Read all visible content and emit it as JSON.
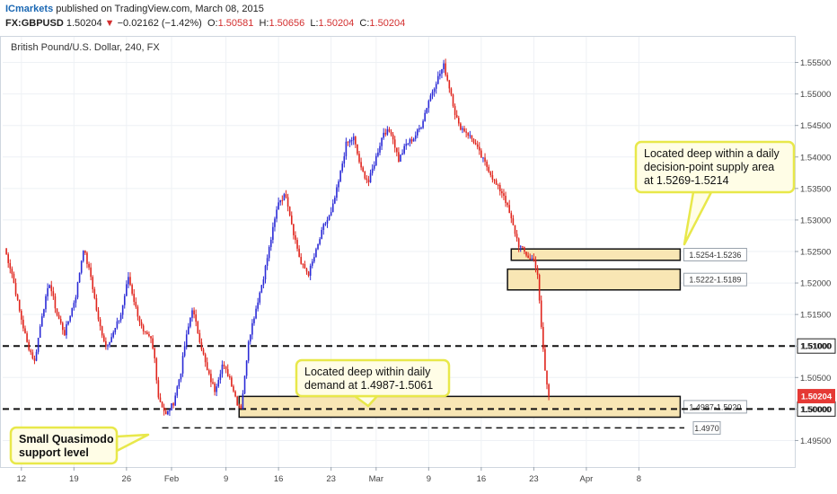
{
  "header": {
    "brand": "ICmarkets",
    "published": "published on TradingView.com, March 08, 2015",
    "symbol": "FX:GBPUSD",
    "last": "1.50204",
    "change_arrow": "▼",
    "change": "−0.02162 (−1.42%)",
    "o_label": "O:",
    "o_value": "1.50581",
    "h_label": "H:",
    "h_value": "1.50656",
    "l_label": "L:",
    "l_value": "1.50204",
    "c_label": "C:",
    "c_value": "1.50204"
  },
  "colors": {
    "up": "#2b2bd6",
    "down": "#e0261e",
    "zone_fill": "#f8e6b4",
    "annotation_fill": "#fffde6",
    "annotation_border": "#e8e84a",
    "price_badge": "#e53935"
  },
  "chart_data": {
    "type": "candlestick",
    "title": "British Pound/U.S. Dollar, 240, FX",
    "ylim": [
      1.4915,
      1.5575
    ],
    "price_labels": [
      "1.55500",
      "1.55000",
      "1.54500",
      "1.54000",
      "1.53500",
      "1.53000",
      "1.52500",
      "1.52000",
      "1.51500",
      "1.51000",
      "1.50500",
      "1.50000",
      "1.49500"
    ],
    "price_values": [
      1.555,
      1.55,
      1.545,
      1.54,
      1.535,
      1.53,
      1.525,
      1.52,
      1.515,
      1.51,
      1.505,
      1.5,
      1.495
    ],
    "x_labels": [
      "12",
      "19",
      "26",
      "Feb",
      "9",
      "16",
      "23",
      "Mar",
      "9",
      "16",
      "23",
      "Apr",
      "8"
    ],
    "x_index": [
      9,
      37,
      65,
      89,
      118,
      146,
      174,
      198,
      226,
      254,
      282,
      310,
      338
    ],
    "current_price": {
      "value": 1.50204,
      "label": "1.50204"
    },
    "horizontal_levels": [
      {
        "value": 1.51,
        "label": "1.51000",
        "style": "dashed",
        "from": 0
      },
      {
        "value": 1.5,
        "label": "1.50000",
        "style": "dashed",
        "from": 0
      },
      {
        "value": 1.497,
        "label": "1.4970",
        "style": "dashed",
        "from": 84
      }
    ],
    "zones": [
      {
        "top": 1.5254,
        "bottom": 1.5236,
        "label": "1.5254-1.5236",
        "from": 270,
        "to": 360
      },
      {
        "top": 1.5222,
        "bottom": 1.5189,
        "label": "1.5222-1.5189",
        "from": 268,
        "to": 360
      },
      {
        "top": 1.502,
        "bottom": 1.4987,
        "label": "1.4987-1.5020",
        "from": 125,
        "to": 360
      }
    ],
    "annotations": [
      {
        "id": "supply",
        "lines": [
          "Located deep within a daily",
          "decision-point supply area",
          "at 1.5269-1.5214"
        ]
      },
      {
        "id": "demand",
        "lines": [
          "Located deep within daily",
          "demand at 1.4987-1.5061"
        ]
      },
      {
        "id": "qm",
        "lines": [
          "Small Quasimodo",
          "support level"
        ]
      }
    ],
    "waypoints": [
      [
        0,
        1.5255
      ],
      [
        4,
        1.5215
      ],
      [
        8,
        1.5155
      ],
      [
        12,
        1.5105
      ],
      [
        16,
        1.5075
      ],
      [
        20,
        1.515
      ],
      [
        24,
        1.52
      ],
      [
        28,
        1.515
      ],
      [
        32,
        1.512
      ],
      [
        38,
        1.518
      ],
      [
        42,
        1.5255
      ],
      [
        46,
        1.521
      ],
      [
        50,
        1.514
      ],
      [
        54,
        1.51
      ],
      [
        58,
        1.512
      ],
      [
        62,
        1.515
      ],
      [
        66,
        1.521
      ],
      [
        70,
        1.516
      ],
      [
        74,
        1.512
      ],
      [
        78,
        1.511
      ],
      [
        80,
        1.508
      ],
      [
        82,
        1.502
      ],
      [
        86,
        1.499
      ],
      [
        90,
        1.501
      ],
      [
        94,
        1.506
      ],
      [
        96,
        1.51
      ],
      [
        100,
        1.516
      ],
      [
        104,
        1.511
      ],
      [
        108,
        1.506
      ],
      [
        112,
        1.503
      ],
      [
        116,
        1.507
      ],
      [
        120,
        1.505
      ],
      [
        124,
        1.501
      ],
      [
        126,
        1.5003
      ],
      [
        128,
        1.505
      ],
      [
        130,
        1.511
      ],
      [
        134,
        1.516
      ],
      [
        138,
        1.521
      ],
      [
        142,
        1.527
      ],
      [
        146,
        1.533
      ],
      [
        150,
        1.534
      ],
      [
        154,
        1.528
      ],
      [
        158,
        1.523
      ],
      [
        162,
        1.5215
      ],
      [
        166,
        1.525
      ],
      [
        170,
        1.529
      ],
      [
        174,
        1.531
      ],
      [
        178,
        1.536
      ],
      [
        182,
        1.542
      ],
      [
        186,
        1.543
      ],
      [
        190,
        1.538
      ],
      [
        194,
        1.536
      ],
      [
        198,
        1.54
      ],
      [
        202,
        1.544
      ],
      [
        206,
        1.544
      ],
      [
        210,
        1.5395
      ],
      [
        214,
        1.542
      ],
      [
        218,
        1.543
      ],
      [
        222,
        1.545
      ],
      [
        226,
        1.549
      ],
      [
        230,
        1.552
      ],
      [
        234,
        1.5545
      ],
      [
        238,
        1.55
      ],
      [
        240,
        1.547
      ],
      [
        242,
        1.545
      ],
      [
        246,
        1.544
      ],
      [
        250,
        1.5425
      ],
      [
        254,
        1.54
      ],
      [
        258,
        1.538
      ],
      [
        262,
        1.5355
      ],
      [
        266,
        1.534
      ],
      [
        270,
        1.53
      ],
      [
        274,
        1.526
      ],
      [
        278,
        1.5245
      ],
      [
        280,
        1.5237
      ],
      [
        282,
        1.524
      ],
      [
        284,
        1.521
      ],
      [
        286,
        1.513
      ],
      [
        288,
        1.506
      ],
      [
        290,
        1.502
      ]
    ]
  }
}
